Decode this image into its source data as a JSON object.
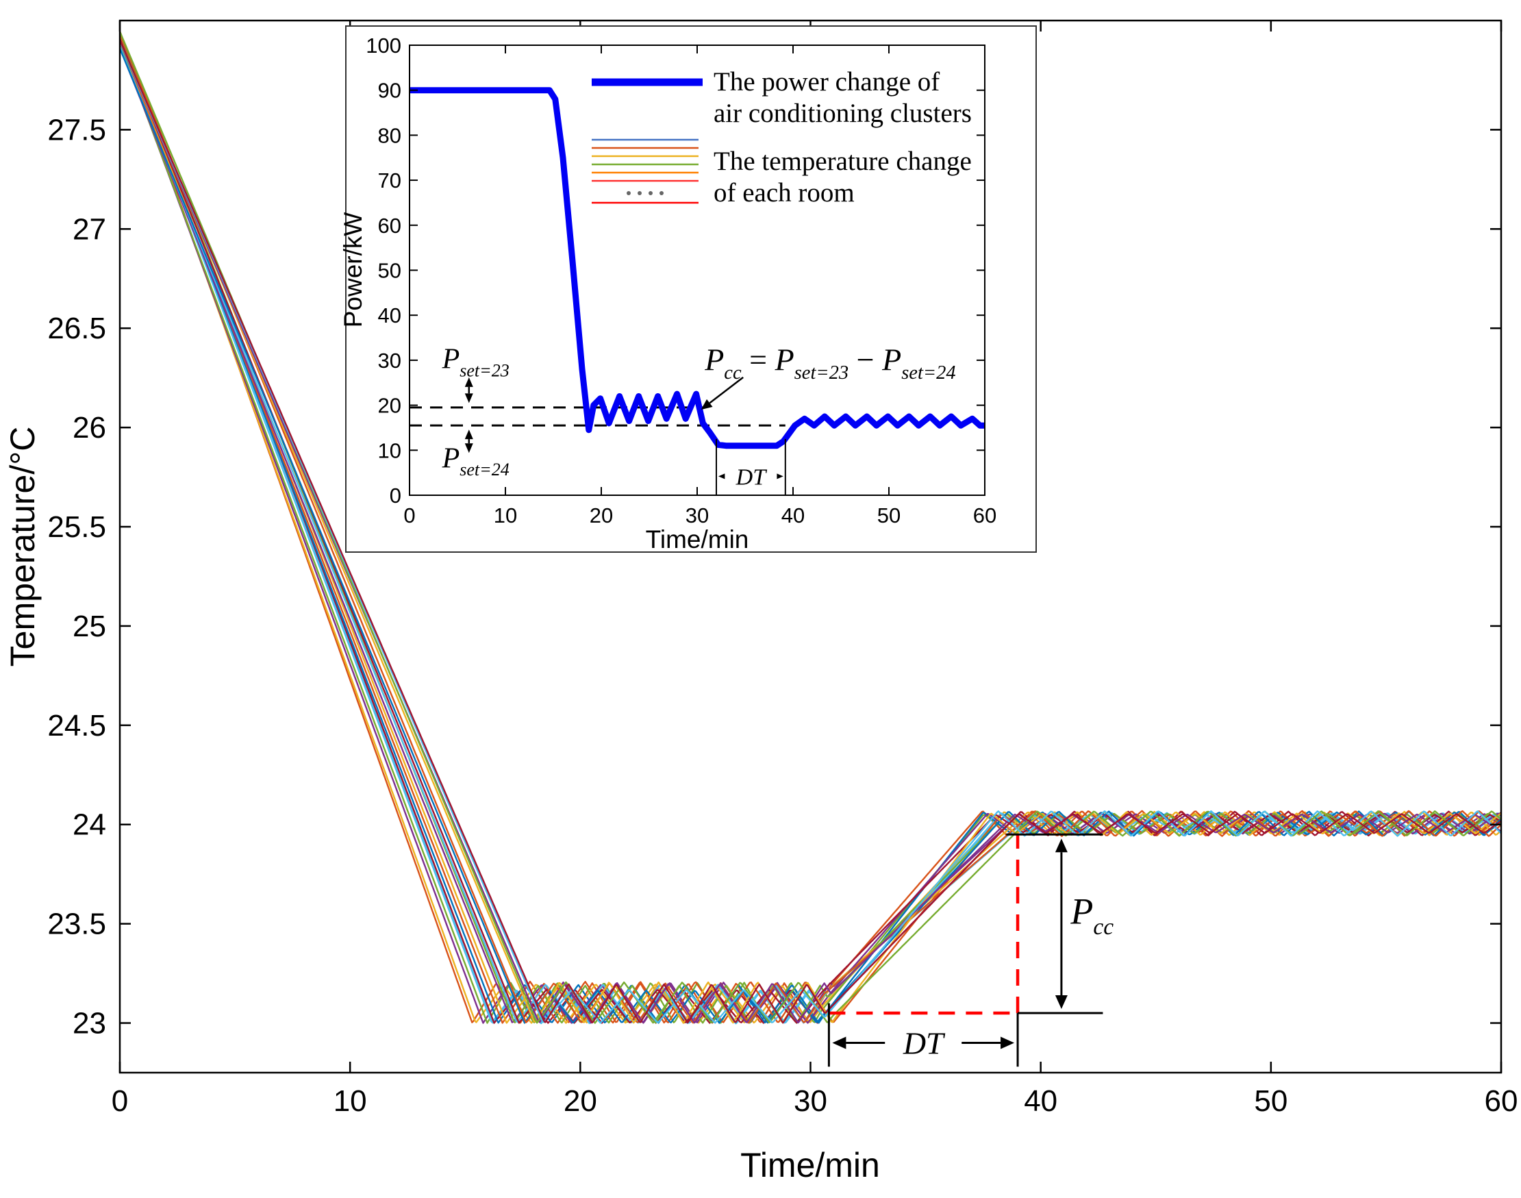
{
  "chart_data": [
    {
      "id": "main-temperature-chart",
      "type": "line",
      "title": "",
      "xlabel": "Time/min",
      "ylabel": "Temperature/°C",
      "xlim": [
        0,
        60
      ],
      "ylim": [
        22.75,
        28.05
      ],
      "xticks": [
        0,
        10,
        20,
        30,
        40,
        50,
        60
      ],
      "yticks": [
        23,
        23.5,
        24,
        24.5,
        25,
        25.5,
        26,
        26.5,
        27,
        27.5
      ],
      "grid": false,
      "rooms": {
        "count": 20,
        "start_temp_c": 28.0,
        "cooldown_reach_min": [
          15.5,
          18.6
        ],
        "comfort_band_at_23": [
          23.0,
          23.2
        ],
        "setpoint_change_min": 30.5,
        "ramp_reach_min": [
          37.4,
          39.7
        ],
        "comfort_band_at_24": [
          23.95,
          24.06
        ],
        "cycle_period_min": [
          2.0,
          2.6
        ]
      },
      "palette": [
        "#0072BD",
        "#D95319",
        "#EDB120",
        "#7E2F8E",
        "#77AC30",
        "#4DBEEE",
        "#A2142F"
      ],
      "annotations": {
        "dt": {
          "label": "DT",
          "x_start": 30.8,
          "x_end": 39,
          "y": 22.9
        },
        "pcc": {
          "base": "P",
          "sub": "cc",
          "arrow_x": 40.9,
          "y_top": 23.95,
          "y_bottom": 23.05
        },
        "red_step": {
          "x_start": 30.8,
          "x_corner": 39,
          "y_low": 23.05,
          "y_high": 23.95,
          "color": "#FF0000"
        },
        "ref_lines": {
          "y_high": 23.95,
          "y_low": 23.05,
          "x_start_high": 38.5,
          "x_start_low": 39,
          "x_end": 42.7
        }
      }
    },
    {
      "id": "inset-power-chart",
      "type": "line",
      "title": "",
      "xlabel": "Time/min",
      "ylabel": "Power/kW",
      "xlim": [
        0,
        60
      ],
      "ylim": [
        0,
        100
      ],
      "xticks": [
        0,
        10,
        20,
        30,
        40,
        50,
        60
      ],
      "yticks": [
        0,
        10,
        20,
        30,
        40,
        50,
        60,
        70,
        80,
        90,
        100
      ],
      "power_series": {
        "name": "The power change of air conditioning clusters",
        "color": "#0000F5",
        "x": [
          0,
          14.6,
          15.2,
          16.0,
          17.0,
          18.0,
          18.7,
          19.2,
          19.9,
          20.8,
          21.9,
          22.9,
          23.9,
          24.9,
          25.9,
          26.8,
          27.9,
          28.8,
          29.9,
          30.6,
          31.3,
          32.2,
          33.0,
          38.3,
          39.0,
          40.2,
          41.2,
          42.2,
          43.3,
          44.3,
          45.5,
          46.5,
          47.7,
          48.7,
          49.9,
          50.9,
          52.1,
          53.1,
          54.3,
          55.3,
          56.5,
          57.5,
          58.7,
          59.5,
          60
        ],
        "y": [
          90,
          90,
          88,
          75,
          52,
          28,
          14.5,
          20,
          21.5,
          16,
          22,
          16.5,
          22,
          16.5,
          22,
          17,
          22.5,
          17,
          22.5,
          16,
          14,
          11.2,
          11,
          11,
          12,
          15.5,
          17,
          15.5,
          17.5,
          15.5,
          17.5,
          15.5,
          17.5,
          15.5,
          17.5,
          15.5,
          17.5,
          15.5,
          17.5,
          15.5,
          17.5,
          15.5,
          17,
          15.5,
          15.5
        ]
      },
      "setpoint_power_levels": {
        "p_set23_kw": 19.5,
        "p_set24_kw": 15.5,
        "dash_end_upper_min": 30.8,
        "dash_end_lower_min": 39.2
      },
      "legend": [
        {
          "lines": [
            "The power change of",
            "air conditioning clusters"
          ]
        },
        {
          "lines": [
            "The temperature change",
            "of each room"
          ]
        }
      ],
      "legend_stack_colors": [
        "#4472C4",
        "#D95319",
        "#EDB120",
        "#77AC30",
        "#FF8000",
        "#FF3030"
      ],
      "legend_extra_line_color": "#FF0000",
      "annotations": {
        "p_set23": {
          "base": "P",
          "sub": "set=23"
        },
        "p_set24": {
          "base": "P",
          "sub": "set=24"
        },
        "formula": [
          {
            "t": "P",
            "i": 1
          },
          {
            "t": "cc",
            "s": 1,
            "i": 1
          },
          {
            "t": " = "
          },
          {
            "t": "P",
            "i": 1
          },
          {
            "t": "set=23",
            "s": 1,
            "i": 1
          },
          {
            "t": " − "
          },
          {
            "t": "P",
            "i": 1
          },
          {
            "t": "set=24",
            "s": 1,
            "i": 1
          }
        ],
        "dt": {
          "label": "DT",
          "x_start": 32,
          "x_end": 39.2
        }
      }
    }
  ]
}
